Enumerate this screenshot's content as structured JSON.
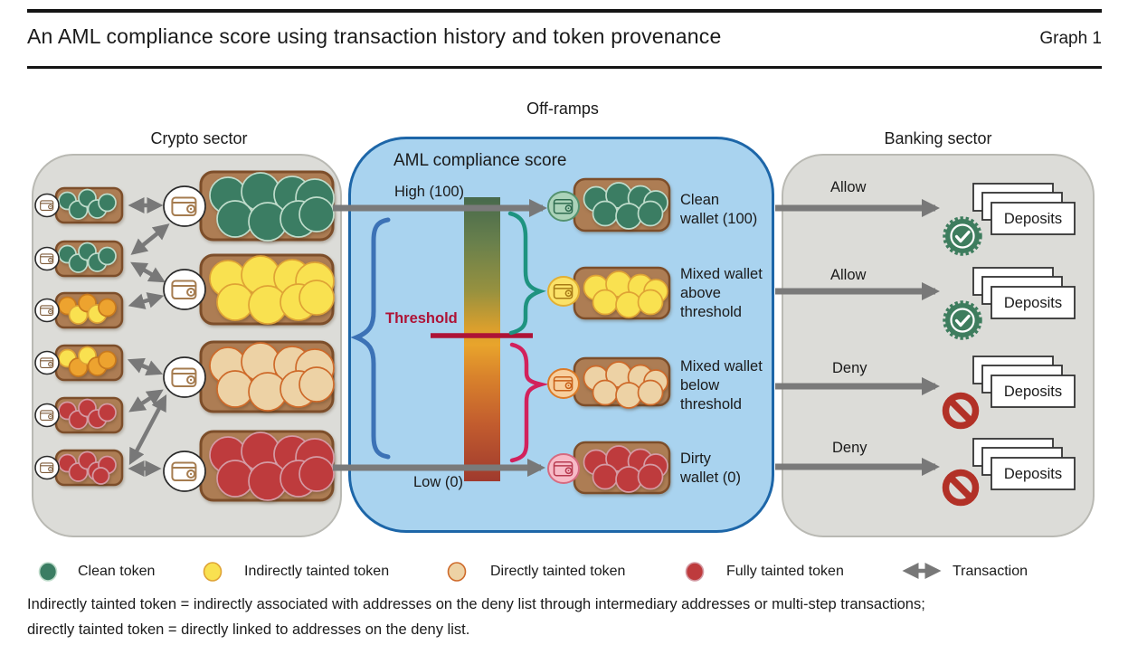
{
  "header": {
    "title": "An AML compliance score using transaction history and token provenance",
    "graph_label": "Graph 1"
  },
  "sections": {
    "crypto": "Crypto sector",
    "offramps": "Off-ramps",
    "banking": "Banking sector"
  },
  "score": {
    "heading": "AML compliance score",
    "high_label": "High (100)",
    "low_label": "Low (0)",
    "threshold_label": "Threshold"
  },
  "wallets": [
    {
      "label": "Clean\nwallet (100)"
    },
    {
      "label": "Mixed wallet\nabove\nthreshold"
    },
    {
      "label": "Mixed wallet\nbelow\nthreshold"
    },
    {
      "label": "Dirty\nwallet (0)"
    }
  ],
  "banking_rows": [
    {
      "action": "Allow",
      "status": "allow",
      "card_label": "Deposits"
    },
    {
      "action": "Allow",
      "status": "allow",
      "card_label": "Deposits"
    },
    {
      "action": "Deny",
      "status": "deny",
      "card_label": "Deposits"
    },
    {
      "action": "Deny",
      "status": "deny",
      "card_label": "Deposits"
    }
  ],
  "legend": [
    {
      "label": "Clean token",
      "token": "green"
    },
    {
      "label": "Indirectly tainted token",
      "token": "yellow"
    },
    {
      "label": "Directly tainted token",
      "token": "tan"
    },
    {
      "label": "Fully tainted token",
      "token": "red"
    },
    {
      "label": "Transaction",
      "icon": "double-arrow"
    }
  ],
  "footnote": {
    "line1": "Indirectly tainted token = indirectly associated with addresses on the deny list through intermediary addresses or multi-step transactions;",
    "line2": "directly tainted token = directly linked to addresses on the deny list."
  },
  "colors": {
    "tokens": {
      "green": {
        "fill": "#3B7D63",
        "stroke": "#BFDCCB"
      },
      "yellow": {
        "fill": "#F9E150",
        "stroke": "#DFA335"
      },
      "orange": {
        "fill": "#EDA32F",
        "stroke": "#C8791E"
      },
      "tan": {
        "fill": "#EDD2A5",
        "stroke": "#CE6A2A"
      },
      "red": {
        "fill": "#BE3B3D",
        "stroke": "#D49BA4"
      }
    },
    "score_gradient_top": "#4E7A55",
    "score_gradient_mid": "#E8A42C",
    "score_gradient_bottom": "#A93B2D",
    "threshold": "#AE1336",
    "allow_badge": "#3E7D5E",
    "deny_badge": "#B23127",
    "offramp_fill": "#A9D3EF",
    "offramp_border": "#1D66A8",
    "sector_fill": "#DCDCD8",
    "arrow": "#7A7A7A"
  },
  "coins": {
    "crypto_small": [
      [
        "green",
        "green",
        "green",
        "green",
        "green"
      ],
      [
        "green",
        "green",
        "green",
        "green",
        "green"
      ],
      [
        "orange",
        "yellow",
        "orange",
        "yellow",
        "orange"
      ],
      [
        "yellow",
        "orange",
        "yellow",
        "orange",
        "orange"
      ],
      [
        "red",
        "red",
        "red",
        "red",
        "red"
      ],
      [
        "red",
        "red",
        "red",
        "red",
        "red",
        "red"
      ]
    ],
    "crypto_large": [
      "green",
      "yellow",
      "tan",
      "red"
    ],
    "offramp": [
      "green",
      "yellow",
      "tan",
      "red"
    ]
  }
}
